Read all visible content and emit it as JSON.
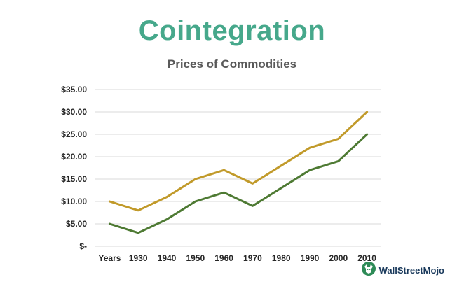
{
  "header": {
    "title": "Cointegration",
    "subtitle": "Prices of Commodities"
  },
  "brand": {
    "name": "WallStreetMojo"
  },
  "colors": {
    "title": "#46a88b",
    "series1": "#c19a2a",
    "series2": "#4e7a33",
    "grid": "#d9d9d9"
  },
  "chart_data": {
    "type": "line",
    "title": "Prices of Commodities",
    "categories": [
      "Years",
      "1930",
      "1940",
      "1950",
      "1960",
      "1970",
      "1980",
      "1990",
      "2000",
      "2010"
    ],
    "series": [
      {
        "values": [
          10,
          8,
          11,
          15,
          17,
          14,
          18,
          22,
          24,
          30
        ]
      },
      {
        "values": [
          5,
          3,
          6,
          10,
          12,
          9,
          13,
          17,
          19,
          25
        ]
      }
    ],
    "ylim": [
      0,
      35
    ],
    "yticks": [
      0,
      5,
      10,
      15,
      20,
      25,
      30,
      35
    ],
    "ytick_labels": [
      "$-",
      "$5.00",
      "$10.00",
      "$15.00",
      "$20.00",
      "$25.00",
      "$30.00",
      "$35.00"
    ],
    "grid": true,
    "legend": "none"
  }
}
